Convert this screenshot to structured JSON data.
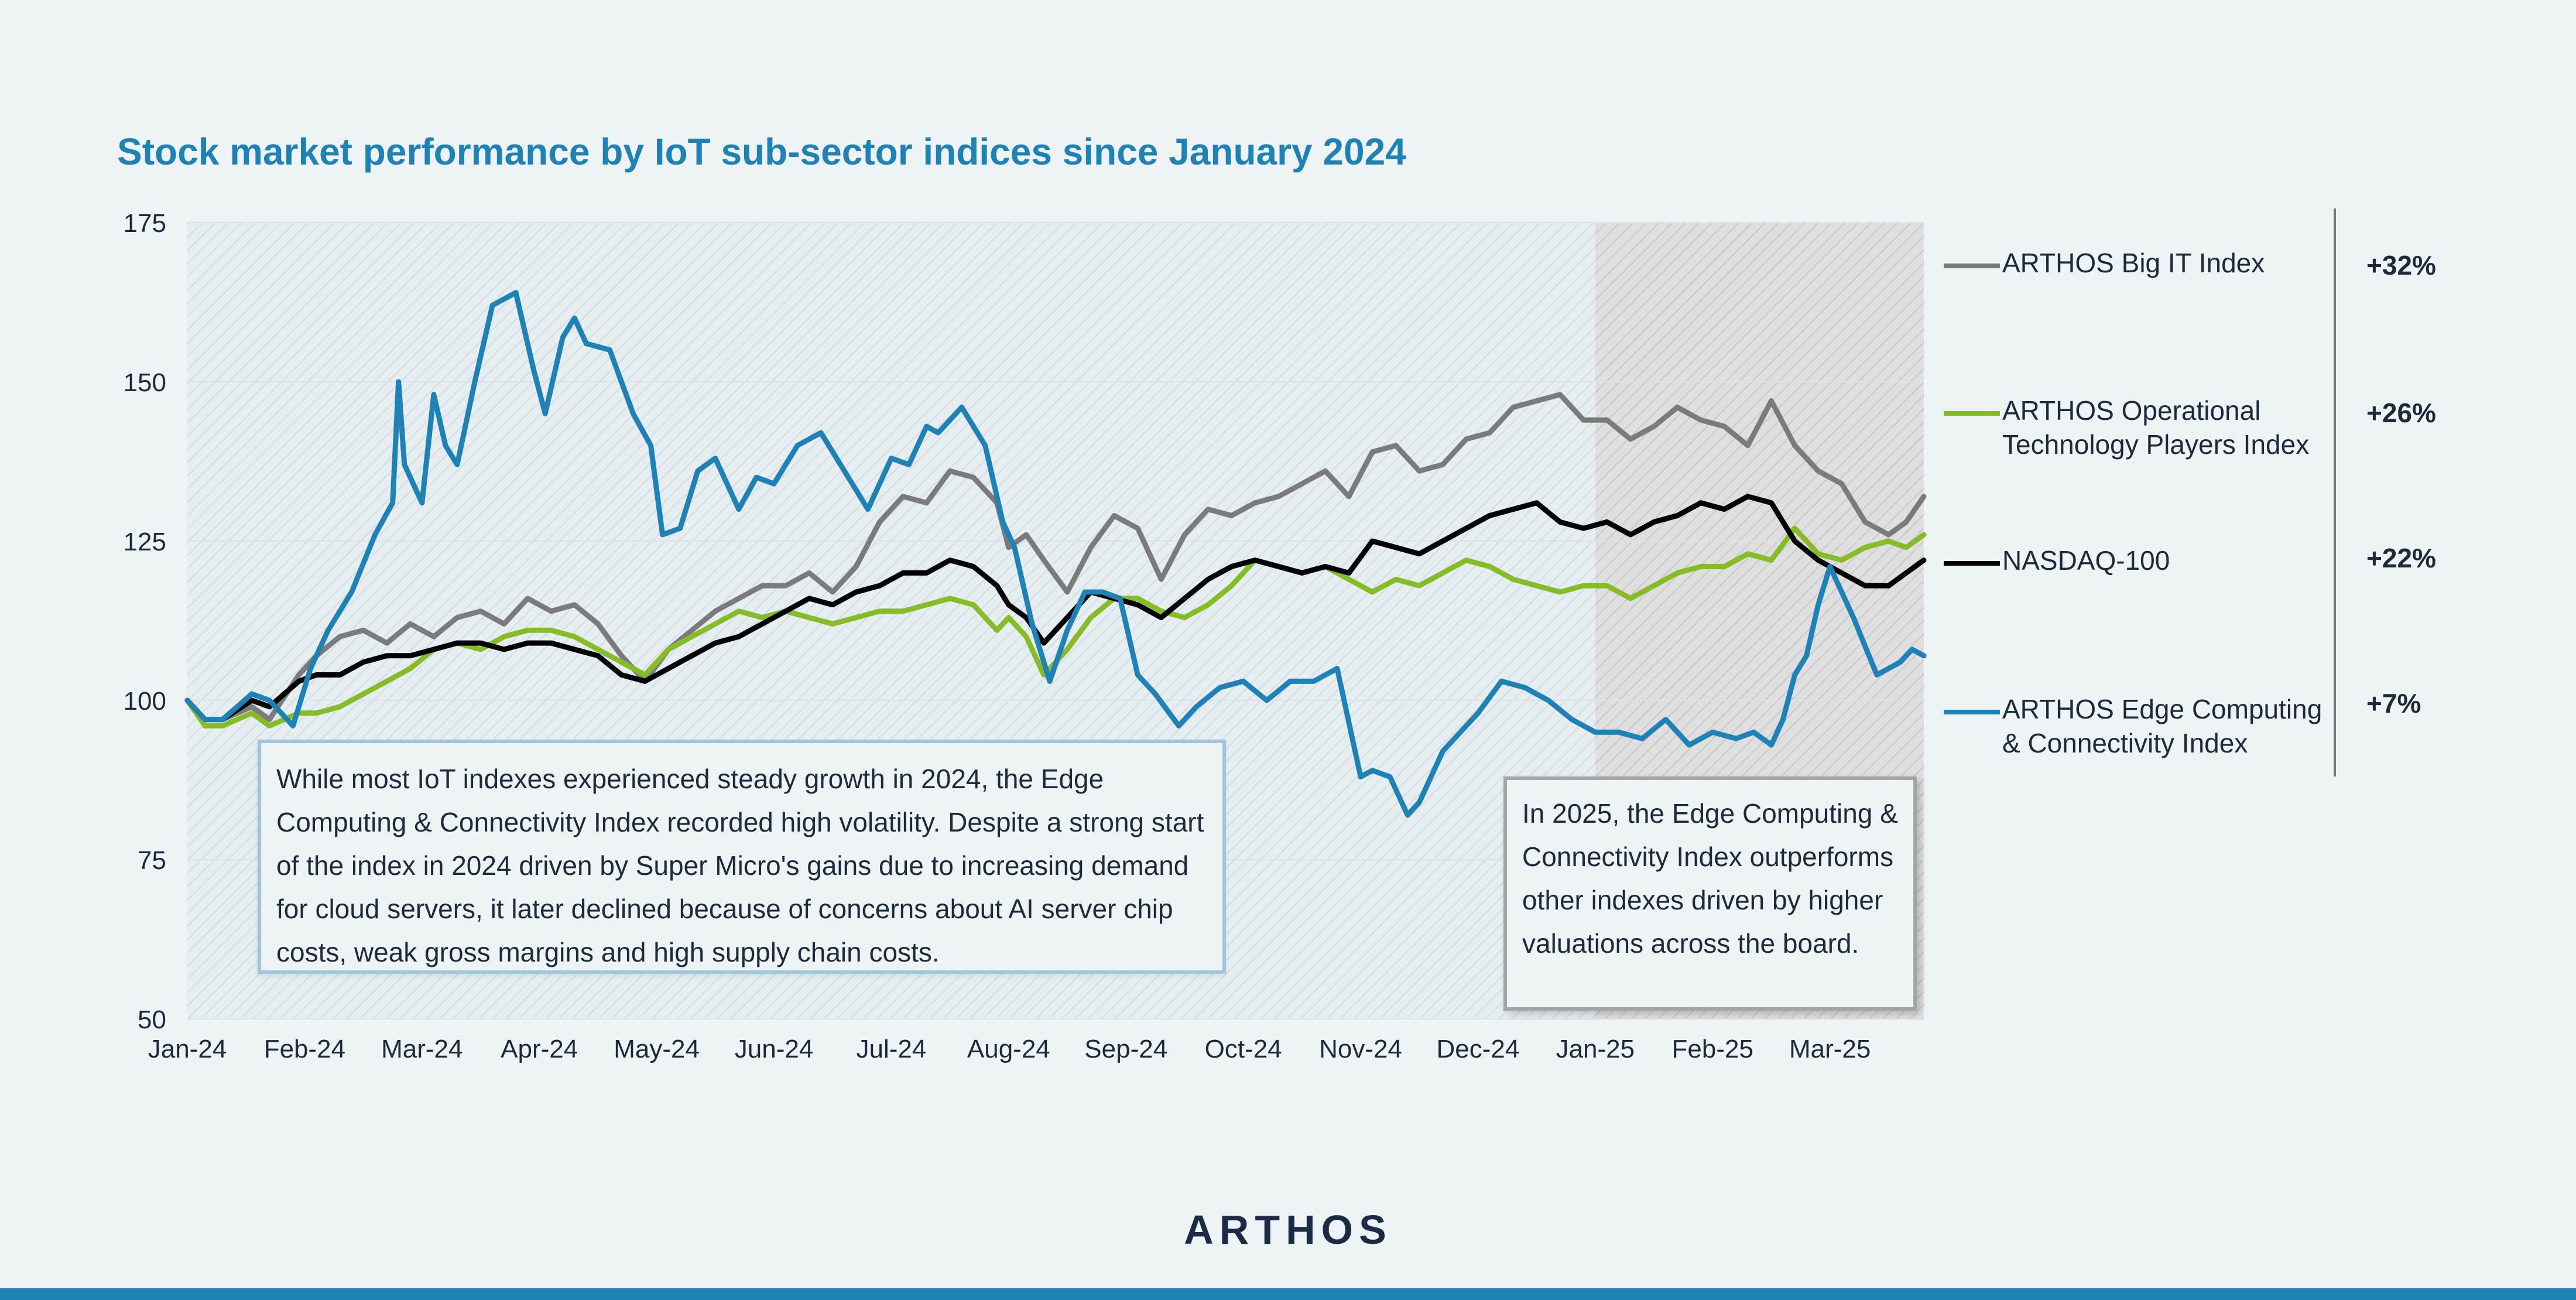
{
  "title": "Stock market performance by IoT sub-sector indices since January 2024",
  "brand": "ARTHOS",
  "colors": {
    "title": "#1f82b6",
    "big_it": "#7b7b7b",
    "operational": "#86bc25",
    "nasdaq": "#000000",
    "edge": "#1f82b6",
    "brand": "#1b2a45",
    "bottom_bar": "#1f82b6"
  },
  "legend": [
    {
      "label": "ARTHOS Big IT Index",
      "value": "+32%",
      "color": "#7b7b7b"
    },
    {
      "label": "ARTHOS Operational\nTechnology Players Index",
      "value": "+26%",
      "color": "#86bc25"
    },
    {
      "label": "NASDAQ-100",
      "value": "+22%",
      "color": "#000000"
    },
    {
      "label": "ARTHOS Edge Computing\n& Connectivity Index",
      "value": "+7%",
      "color": "#1f82b6"
    }
  ],
  "annotations": [
    {
      "text": "While most IoT indexes experienced steady growth in 2024, the Edge Computing & Connectivity Index recorded high volatility. Despite a strong start of the index in 2024 driven by Super Micro's gains due to increasing demand for cloud servers, it later declined because of concerns about AI server chip costs, weak gross margins and high supply chain costs."
    },
    {
      "text": "In 2025, the Edge Computing & Connectivity Index outperforms other indexes driven by higher valuations across the board."
    }
  ],
  "chart_data": {
    "type": "line",
    "title": "Stock market performance by IoT sub-sector indices since January 2024",
    "xlabel": "",
    "ylabel": "",
    "ylim": [
      50,
      175
    ],
    "y_ticks": [
      "50",
      "75",
      "100",
      "125",
      "150",
      "175"
    ],
    "x_tick_labels": [
      "Jan-24",
      "Feb-24",
      "Mar-24",
      "Apr-24",
      "May-24",
      "Jun-24",
      "Jul-24",
      "Aug-24",
      "Sep-24",
      "Oct-24",
      "Nov-24",
      "Dec-24",
      "Jan-25",
      "Feb-25",
      "Mar-25"
    ],
    "x_range_months": [
      0,
      14.8
    ],
    "shaded_region_from_month": 12,
    "grid": true,
    "legend_position": "right",
    "series": [
      {
        "name": "ARTHOS Big IT Index",
        "color": "#7b7b7b",
        "x": [
          0,
          0.15,
          0.3,
          0.55,
          0.7,
          0.95,
          1.1,
          1.3,
          1.5,
          1.7,
          1.9,
          2.1,
          2.3,
          2.5,
          2.7,
          2.9,
          3.1,
          3.3,
          3.5,
          3.7,
          3.9,
          4.1,
          4.3,
          4.5,
          4.7,
          4.9,
          5.1,
          5.3,
          5.5,
          5.7,
          5.9,
          6.1,
          6.3,
          6.5,
          6.7,
          6.9,
          7.0,
          7.15,
          7.3,
          7.5,
          7.7,
          7.9,
          8.1,
          8.3,
          8.5,
          8.7,
          8.9,
          9.1,
          9.3,
          9.5,
          9.7,
          9.9,
          10.1,
          10.3,
          10.5,
          10.7,
          10.9,
          11.1,
          11.3,
          11.5,
          11.7,
          11.9,
          12.1,
          12.3,
          12.5,
          12.7,
          12.9,
          13.1,
          13.3,
          13.5,
          13.7,
          13.9,
          14.1,
          14.3,
          14.5,
          14.65,
          14.8
        ],
        "y": [
          100,
          97,
          97,
          99,
          97,
          104,
          107,
          110,
          111,
          109,
          112,
          110,
          113,
          114,
          112,
          116,
          114,
          115,
          112,
          107,
          103,
          108,
          111,
          114,
          116,
          118,
          118,
          120,
          117,
          121,
          128,
          132,
          131,
          136,
          135,
          131,
          124,
          126,
          122,
          117,
          124,
          129,
          127,
          119,
          126,
          130,
          129,
          131,
          132,
          134,
          136,
          132,
          139,
          140,
          136,
          137,
          141,
          142,
          146,
          147,
          148,
          144,
          144,
          141,
          143,
          146,
          144,
          143,
          140,
          147,
          140,
          136,
          134,
          128,
          126,
          128,
          132
        ]
      },
      {
        "name": "ARTHOS Operational Technology Players Index",
        "color": "#86bc25",
        "x": [
          0,
          0.15,
          0.3,
          0.55,
          0.7,
          0.95,
          1.1,
          1.3,
          1.5,
          1.7,
          1.9,
          2.1,
          2.3,
          2.5,
          2.7,
          2.9,
          3.1,
          3.3,
          3.5,
          3.7,
          3.9,
          4.1,
          4.3,
          4.5,
          4.7,
          4.9,
          5.1,
          5.3,
          5.5,
          5.7,
          5.9,
          6.1,
          6.3,
          6.5,
          6.7,
          6.9,
          7.0,
          7.15,
          7.3,
          7.5,
          7.7,
          7.9,
          8.1,
          8.3,
          8.5,
          8.7,
          8.9,
          9.1,
          9.3,
          9.5,
          9.7,
          9.9,
          10.1,
          10.3,
          10.5,
          10.7,
          10.9,
          11.1,
          11.3,
          11.5,
          11.7,
          11.9,
          12.1,
          12.3,
          12.5,
          12.7,
          12.9,
          13.1,
          13.3,
          13.5,
          13.7,
          13.9,
          14.1,
          14.3,
          14.5,
          14.65,
          14.8
        ],
        "y": [
          100,
          96,
          96,
          98,
          96,
          98,
          98,
          99,
          101,
          103,
          105,
          108,
          109,
          108,
          110,
          111,
          111,
          110,
          108,
          106,
          104,
          108,
          110,
          112,
          114,
          113,
          114,
          113,
          112,
          113,
          114,
          114,
          115,
          116,
          115,
          111,
          113,
          110,
          104,
          108,
          113,
          116,
          116,
          114,
          113,
          115,
          118,
          122,
          121,
          120,
          121,
          119,
          117,
          119,
          118,
          120,
          122,
          121,
          119,
          118,
          117,
          118,
          118,
          116,
          118,
          120,
          121,
          121,
          123,
          122,
          127,
          123,
          122,
          124,
          125,
          124,
          126
        ]
      },
      {
        "name": "NASDAQ-100",
        "color": "#000000",
        "x": [
          0,
          0.15,
          0.3,
          0.55,
          0.7,
          0.95,
          1.1,
          1.3,
          1.5,
          1.7,
          1.9,
          2.1,
          2.3,
          2.5,
          2.7,
          2.9,
          3.1,
          3.3,
          3.5,
          3.7,
          3.9,
          4.1,
          4.3,
          4.5,
          4.7,
          4.9,
          5.1,
          5.3,
          5.5,
          5.7,
          5.9,
          6.1,
          6.3,
          6.5,
          6.7,
          6.9,
          7.0,
          7.15,
          7.3,
          7.5,
          7.7,
          7.9,
          8.1,
          8.3,
          8.5,
          8.7,
          8.9,
          9.1,
          9.3,
          9.5,
          9.7,
          9.9,
          10.1,
          10.3,
          10.5,
          10.7,
          10.9,
          11.1,
          11.3,
          11.5,
          11.7,
          11.9,
          12.1,
          12.3,
          12.5,
          12.7,
          12.9,
          13.1,
          13.3,
          13.5,
          13.7,
          13.9,
          14.1,
          14.3,
          14.5,
          14.65,
          14.8
        ],
        "y": [
          100,
          97,
          97,
          100,
          99,
          103,
          104,
          104,
          106,
          107,
          107,
          108,
          109,
          109,
          108,
          109,
          109,
          108,
          107,
          104,
          103,
          105,
          107,
          109,
          110,
          112,
          114,
          116,
          115,
          117,
          118,
          120,
          120,
          122,
          121,
          118,
          115,
          113,
          109,
          113,
          117,
          116,
          115,
          113,
          116,
          119,
          121,
          122,
          121,
          120,
          121,
          120,
          125,
          124,
          123,
          125,
          127,
          129,
          130,
          131,
          128,
          127,
          128,
          126,
          128,
          129,
          131,
          130,
          132,
          131,
          125,
          122,
          120,
          118,
          118,
          120,
          122
        ]
      },
      {
        "name": "ARTHOS Edge Computing & Connectivity Index",
        "color": "#1f82b6",
        "x": [
          0,
          0.15,
          0.3,
          0.55,
          0.7,
          0.9,
          1.05,
          1.2,
          1.4,
          1.6,
          1.75,
          1.8,
          1.85,
          2.0,
          2.1,
          2.2,
          2.3,
          2.45,
          2.6,
          2.8,
          2.95,
          3.05,
          3.2,
          3.3,
          3.4,
          3.6,
          3.8,
          3.95,
          4.05,
          4.2,
          4.35,
          4.5,
          4.7,
          4.85,
          5.0,
          5.2,
          5.4,
          5.6,
          5.8,
          6.0,
          6.15,
          6.3,
          6.4,
          6.6,
          6.8,
          6.95,
          7.05,
          7.2,
          7.35,
          7.5,
          7.65,
          7.8,
          7.95,
          8.1,
          8.25,
          8.45,
          8.6,
          8.8,
          9.0,
          9.2,
          9.4,
          9.6,
          9.8,
          10.0,
          10.1,
          10.25,
          10.4,
          10.5,
          10.7,
          10.9,
          11.0,
          11.2,
          11.4,
          11.6,
          11.8,
          12.0,
          12.2,
          12.4,
          12.6,
          12.8,
          13.0,
          13.2,
          13.35,
          13.5,
          13.6,
          13.7,
          13.8,
          13.9,
          14.0,
          14.2,
          14.4,
          14.6,
          14.7,
          14.8
        ],
        "y": [
          100,
          97,
          97,
          101,
          100,
          96,
          105,
          111,
          117,
          126,
          131,
          150,
          137,
          131,
          148,
          140,
          137,
          150,
          162,
          164,
          152,
          145,
          157,
          160,
          156,
          155,
          145,
          140,
          126,
          127,
          136,
          138,
          130,
          135,
          134,
          140,
          142,
          136,
          130,
          138,
          137,
          143,
          142,
          146,
          140,
          128,
          124,
          112,
          103,
          111,
          117,
          117,
          116,
          104,
          101,
          96,
          99,
          102,
          103,
          100,
          103,
          103,
          105,
          88,
          89,
          88,
          82,
          84,
          92,
          96,
          98,
          103,
          102,
          100,
          97,
          95,
          95,
          94,
          97,
          93,
          95,
          94,
          95,
          93,
          97,
          104,
          107,
          115,
          121,
          113,
          104,
          106,
          108,
          107
        ]
      }
    ]
  }
}
